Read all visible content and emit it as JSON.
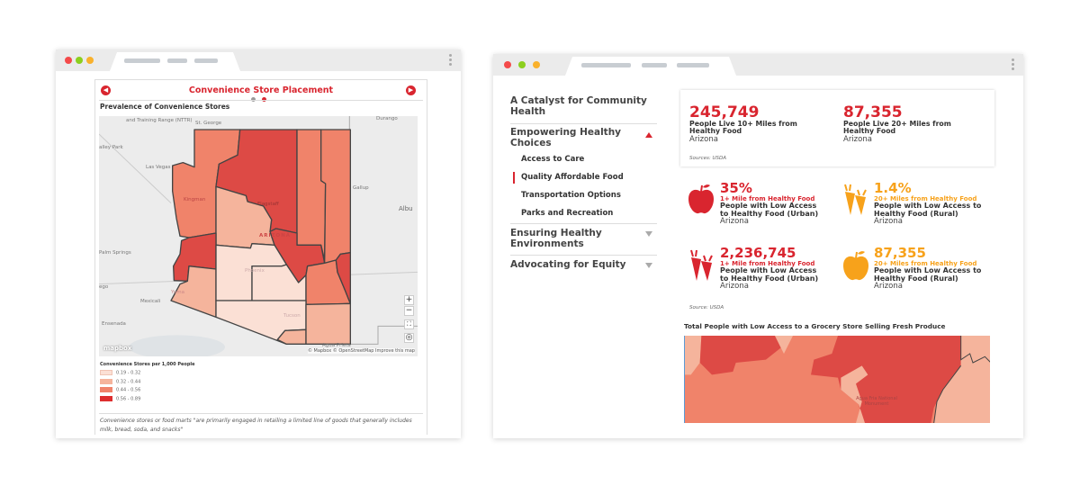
{
  "colors": {
    "accent_red": "#d9252f",
    "accent_orange": "#f7a21b",
    "window_dots": [
      "#f44a4a",
      "#8ccf1e",
      "#f9b12c"
    ]
  },
  "left_window": {
    "panel_title": "Convenience Store Placement",
    "prev_icon": "chevron-left-circle-icon",
    "next_icon": "chevron-right-circle-icon",
    "pager": {
      "pages": 2,
      "active": 2
    },
    "map_title": "Prevalence of Convenience Stores",
    "map_labels": {
      "nttr": "and Training Range (NTTR)",
      "st_george": "St. George",
      "durango": "Durango",
      "valley_park": "alley Park",
      "las_vegas": "Las Vegas",
      "kingman": "Kingman",
      "flagstaff": "Flagstaff",
      "gallup": "Gallup",
      "albu": "Albu",
      "arizona": "ARIZONA",
      "palm_springs": "Palm Springs",
      "phoenix": "Phoenix",
      "ego": "ego",
      "yuma": "Yuma",
      "mexicali": "Mexicali",
      "tucson": "Tucson",
      "ensenada": "Ensenada",
      "agua_prieta": "Agua Prieta"
    },
    "attribution": "© Mapbox © OpenStreetMap  Improve this map",
    "logo": "mapbox",
    "zoom_controls": {
      "zoom_in": "+",
      "zoom_out": "−",
      "fullscreen": "⛶",
      "locate": "◎"
    },
    "legend": {
      "title": "Convenience Stores per 1,000 People",
      "items": [
        {
          "label": "0.19 - 0.32",
          "color": "#fbe0d5"
        },
        {
          "label": "0.32 - 0.44",
          "color": "#f5b49c"
        },
        {
          "label": "0.44 - 0.56",
          "color": "#f0836a"
        },
        {
          "label": "0.56 - 0.89",
          "color": "#dd4a45"
        }
      ]
    },
    "footnote": "Convenience stores or food marts \"are primarily engaged in retailing a limited line of goods that generally includes milk, bread, soda, and snacks\""
  },
  "right_window": {
    "sidebar": [
      {
        "label": "A Catalyst for Community Health"
      },
      {
        "label": "Empowering Healthy Choices",
        "expanded": true,
        "children": [
          {
            "label": "Access to Care"
          },
          {
            "label": "Quality Affordable Food",
            "active": true
          },
          {
            "label": "Transportation Options"
          },
          {
            "label": "Parks and Recreation"
          }
        ]
      },
      {
        "label": "Ensuring Healthy Environments",
        "expanded": false
      },
      {
        "label": "Advocating for Equity",
        "expanded": false
      }
    ],
    "top_stats": [
      {
        "value": "245,749",
        "label": "People Live 10+ Miles from Healthy Food",
        "location": "Arizona"
      },
      {
        "value": "87,355",
        "label": "People Live 20+ Miles from Healthy Food",
        "location": "Arizona"
      }
    ],
    "top_source": "Sources: USDA",
    "food_stats": [
      {
        "icon": "apple-icon",
        "color": "red",
        "value": "35%",
        "tag": "1+ Mile from Healthy Food",
        "label": "People with Low Access to Healthy Food (Urban)",
        "location": "Arizona"
      },
      {
        "icon": "carrot-icon",
        "color": "orange",
        "value": "1.4%",
        "tag": "20+ Miles from Healthy Food",
        "label": "People with Low Access to Healthy Food (Rural)",
        "location": "Arizona"
      },
      {
        "icon": "carrot-icon",
        "color": "red",
        "value": "2,236,745",
        "tag": "1+ Mile from Healthy Food",
        "label": "People with Low Access to Healthy Food (Urban)",
        "location": "Arizona"
      },
      {
        "icon": "apple-icon",
        "color": "orange",
        "value": "87,355",
        "tag": "20+ Miles from Healthy Food",
        "label": "People with Low Access to Healthy Food (Rural)",
        "location": "Arizona"
      }
    ],
    "food_source": "Source: USDA",
    "map_title": "Total People with Low Access to a Grocery Store Selling Fresh Produce",
    "map_label": "Agua Fria National Monument"
  }
}
